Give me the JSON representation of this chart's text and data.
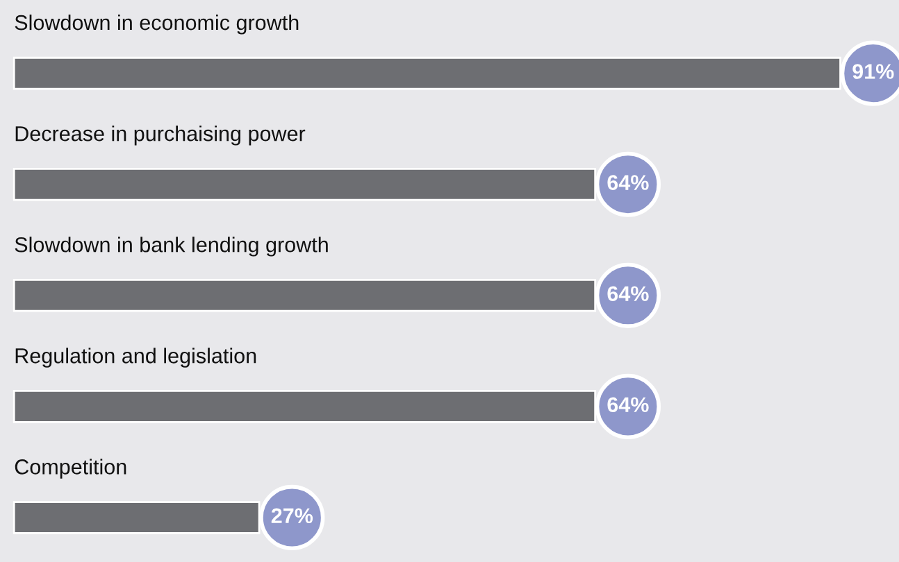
{
  "chart_data": {
    "type": "bar",
    "orientation": "horizontal",
    "categories": [
      "Slowdown in economic growth",
      "Decrease in purchaising power",
      "Slowdown in bank lending growth",
      "Regulation and legislation",
      "Competition"
    ],
    "values": [
      91,
      64,
      64,
      64,
      27
    ],
    "value_labels": [
      "91%",
      "64%",
      "64%",
      "64%",
      "27%"
    ],
    "color": "#6d6e72"
  }
}
